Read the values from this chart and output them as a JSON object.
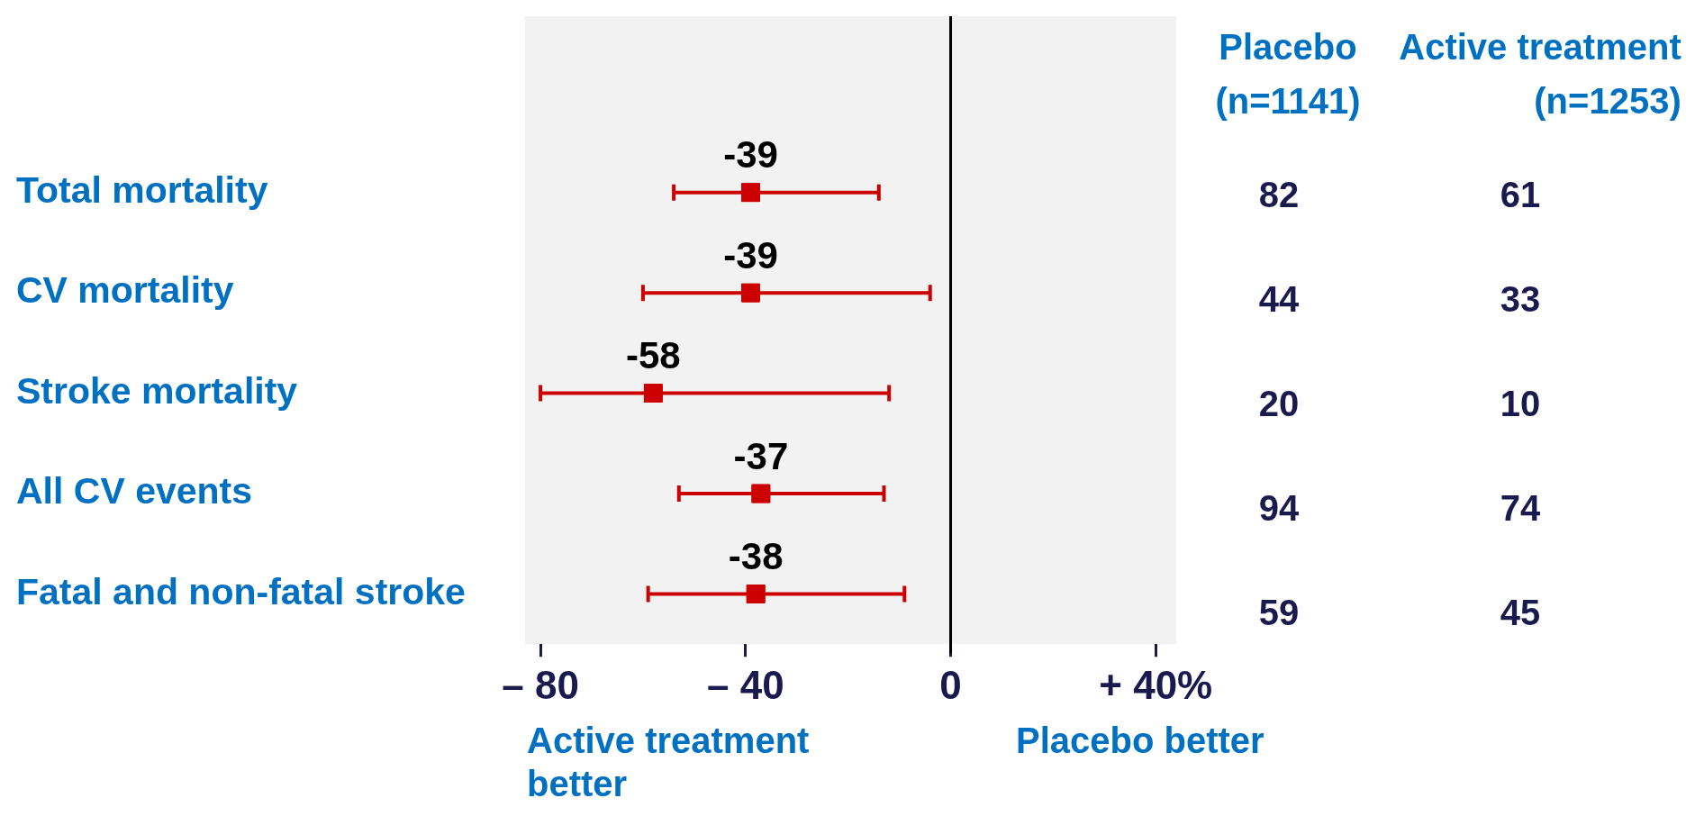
{
  "chart_data": {
    "type": "scatter",
    "orientation": "horizontal",
    "categories": [
      "Total mortality",
      "CV mortality",
      "Stroke mortality",
      "All CV events",
      "Fatal and non-fatal stroke"
    ],
    "values": [
      -39,
      -39,
      -58,
      -37,
      -38
    ],
    "errors": [
      [
        -54,
        -14
      ],
      [
        -60,
        -4
      ],
      [
        -80,
        -12
      ],
      [
        -53,
        -13
      ],
      [
        -59,
        -9
      ]
    ],
    "color": "#cc0000",
    "marker": "square",
    "data_labels": true,
    "xlim": [
      -83,
      44
    ],
    "xticks": [
      {
        "value": -80,
        "label": "– 80"
      },
      {
        "value": -40,
        "label": "– 40"
      },
      0,
      {
        "value": 40,
        "label": "+ 40%"
      }
    ],
    "ref_lines": [
      {
        "axis": "x",
        "value": 0,
        "color": "#000000"
      }
    ],
    "annotations": [
      "Placebo\n(n=1141)",
      "Active treatment\n(n=1253)",
      "Active treatment\nbetter",
      "Placebo better",
      "82",
      "61",
      "44",
      "33",
      "20",
      "10",
      "94",
      "74",
      "59",
      "45"
    ]
  }
}
